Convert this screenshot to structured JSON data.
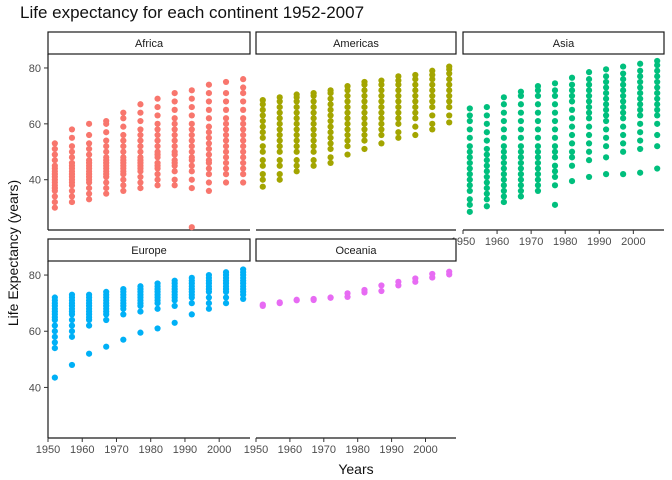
{
  "chart_data": {
    "type": "scatter",
    "title": "Life expectancy for each continent 1952-2007",
    "xlabel": "Years",
    "ylabel": "Life Expectancy (years)",
    "xlim": [
      1950,
      2009
    ],
    "ylim": [
      22,
      85
    ],
    "x_ticks": [
      1950,
      1960,
      1970,
      1980,
      1990,
      2000
    ],
    "y_ticks": [
      40,
      60,
      80
    ],
    "grid": false,
    "legend": "none",
    "facets": [
      {
        "name": "Africa",
        "color": "#F8766D",
        "points": [
          {
            "x": 1952,
            "y": [
              30,
              32,
              34,
              36,
              37,
              38,
              39,
              40,
              41,
              42,
              43,
              44,
              45,
              47,
              49,
              51,
              53
            ]
          },
          {
            "x": 1957,
            "y": [
              32,
              34,
              36,
              38,
              39,
              40,
              41,
              42,
              43,
              44,
              45,
              46,
              48,
              50,
              52,
              55,
              58
            ]
          },
          {
            "x": 1962,
            "y": [
              33,
              35,
              37,
              39,
              40,
              41,
              42,
              43,
              44,
              45,
              46,
              47,
              49,
              51,
              53,
              56,
              60
            ]
          },
          {
            "x": 1967,
            "y": [
              35,
              37,
              39,
              41,
              42,
              43,
              44,
              45,
              46,
              47,
              48,
              50,
              52,
              54,
              57,
              60,
              61
            ]
          },
          {
            "x": 1972,
            "y": [
              36,
              38,
              40,
              42,
              43,
              44,
              45,
              46,
              47,
              48,
              50,
              52,
              54,
              56,
              59,
              62,
              64
            ]
          },
          {
            "x": 1977,
            "y": [
              37,
              39,
              41,
              43,
              44,
              45,
              46,
              47,
              48,
              50,
              52,
              54,
              56,
              58,
              61,
              64,
              67
            ]
          },
          {
            "x": 1982,
            "y": [
              38,
              40,
              42,
              44,
              45,
              46,
              48,
              49,
              50,
              52,
              54,
              56,
              58,
              60,
              63,
              66,
              69
            ]
          },
          {
            "x": 1987,
            "y": [
              38,
              40,
              43,
              45,
              46,
              47,
              49,
              50,
              52,
              54,
              56,
              58,
              60,
              62,
              65,
              68,
              71
            ]
          },
          {
            "x": 1992,
            "y": [
              23,
              37,
              40,
              43,
              45,
              47,
              48,
              50,
              52,
              54,
              56,
              58,
              60,
              63,
              66,
              69,
              72
            ]
          },
          {
            "x": 1997,
            "y": [
              36,
              39,
              42,
              44,
              46,
              47,
              49,
              51,
              53,
              55,
              57,
              59,
              62,
              65,
              68,
              71,
              74
            ]
          },
          {
            "x": 2002,
            "y": [
              39,
              42,
              44,
              46,
              48,
              50,
              52,
              54,
              56,
              58,
              60,
              62,
              65,
              68,
              71,
              75
            ]
          },
          {
            "x": 2007,
            "y": [
              39,
              42,
              44,
              46,
              48,
              50,
              52,
              54,
              56,
              58,
              60,
              62,
              65,
              68,
              71,
              73,
              76
            ]
          }
        ]
      },
      {
        "name": "Americas",
        "color": "#A3A500",
        "points": [
          {
            "x": 1952,
            "y": [
              37.5,
              40,
              42,
              45,
              47,
              50,
              52,
              55,
              57,
              59,
              61,
              63,
              65,
              67,
              68.5
            ]
          },
          {
            "x": 1957,
            "y": [
              40,
              42,
              45,
              47,
              50,
              52,
              54,
              56,
              58,
              60,
              62,
              64,
              66,
              68,
              69.5
            ]
          },
          {
            "x": 1962,
            "y": [
              43,
              45,
              47,
              50,
              52,
              54,
              56,
              58,
              60,
              62,
              64,
              66,
              68,
              69.5,
              70.5
            ]
          },
          {
            "x": 1967,
            "y": [
              45,
              47,
              50,
              52,
              54,
              56,
              58,
              60,
              62,
              64,
              66,
              68,
              70,
              71
            ]
          },
          {
            "x": 1972,
            "y": [
              46,
              48,
              51,
              53,
              55,
              57,
              59,
              61,
              63,
              65,
              67,
              69,
              71,
              72
            ]
          },
          {
            "x": 1977,
            "y": [
              49,
              52,
              54,
              56,
              58,
              60,
              62,
              64,
              66,
              68,
              70,
              72,
              73.5
            ]
          },
          {
            "x": 1982,
            "y": [
              51,
              54,
              56,
              58,
              60,
              62,
              64,
              66,
              68,
              70,
              72,
              74,
              75
            ]
          },
          {
            "x": 1987,
            "y": [
              53,
              56,
              58,
              60,
              62,
              64,
              66,
              68,
              70,
              72,
              74,
              75.5
            ]
          },
          {
            "x": 1992,
            "y": [
              55,
              57,
              60,
              62,
              64,
              66,
              68,
              70,
              72,
              74,
              75.5,
              77
            ]
          },
          {
            "x": 1997,
            "y": [
              56,
              59,
              62,
              64,
              66,
              68,
              70,
              72,
              74,
              76,
              77.5
            ]
          },
          {
            "x": 2002,
            "y": [
              58,
              60,
              63,
              66,
              68,
              70,
              72,
              74,
              76,
              77.5,
              79
            ]
          },
          {
            "x": 2007,
            "y": [
              60.5,
              63,
              66,
              68,
              70,
              72,
              74,
              76,
              78,
              79.5,
              80.5
            ]
          }
        ]
      },
      {
        "name": "Asia",
        "color": "#00BF7D",
        "points": [
          {
            "x": 1952,
            "y": [
              28.5,
              31,
              33,
              36,
              38,
              40,
              42,
              44,
              46,
              48,
              50,
              52,
              55,
              58,
              61,
              63,
              65.5
            ]
          },
          {
            "x": 1957,
            "y": [
              30.5,
              33,
              35,
              37,
              39,
              41,
              43,
              45,
              47,
              49,
              51,
              54,
              57,
              60,
              63,
              66
            ]
          },
          {
            "x": 1962,
            "y": [
              32,
              34,
              36,
              38,
              40,
              42,
              44,
              46,
              48,
              50,
              52,
              55,
              58,
              61,
              64,
              67,
              69.5
            ]
          },
          {
            "x": 1967,
            "y": [
              34,
              36,
              38,
              40,
              42,
              44,
              46,
              48,
              50,
              52,
              55,
              58,
              61,
              64,
              67,
              70,
              71.5
            ]
          },
          {
            "x": 1972,
            "y": [
              36,
              38,
              40,
              42,
              44,
              46,
              48,
              50,
              52,
              55,
              58,
              61,
              64,
              67,
              70,
              72,
              73.5
            ]
          },
          {
            "x": 1977,
            "y": [
              31,
              38,
              41,
              43,
              45,
              48,
              50,
              52,
              55,
              58,
              61,
              64,
              67,
              70,
              72,
              74.5
            ]
          },
          {
            "x": 1982,
            "y": [
              39.5,
              45,
              48,
              50,
              53,
              56,
              59,
              62,
              65,
              68,
              70,
              72,
              74,
              76.5
            ]
          },
          {
            "x": 1987,
            "y": [
              41,
              47,
              50,
              53,
              56,
              59,
              62,
              64,
              66,
              68,
              70,
              72,
              74,
              76,
              78.5
            ]
          },
          {
            "x": 1992,
            "y": [
              42,
              48,
              52,
              55,
              58,
              61,
              63,
              65,
              67,
              69,
              71,
              73,
              75,
              77,
              79.5
            ]
          },
          {
            "x": 1997,
            "y": [
              42,
              50,
              53,
              56,
              59,
              62,
              64,
              66,
              68,
              70,
              72,
              74,
              76,
              78,
              80.5
            ]
          },
          {
            "x": 2002,
            "y": [
              42.5,
              51,
              54,
              57,
              60,
              63,
              65,
              67,
              69,
              71,
              73,
              75,
              77,
              79,
              81.5
            ]
          },
          {
            "x": 2007,
            "y": [
              44,
              52,
              56,
              60,
              63,
              65,
              67,
              69,
              71,
              73,
              75,
              77,
              79,
              81,
              82.5
            ]
          }
        ]
      },
      {
        "name": "Europe",
        "color": "#00B0F6",
        "points": [
          {
            "x": 1952,
            "y": [
              43.5,
              54,
              56,
              58,
              60,
              62,
              64,
              65,
              66,
              67,
              68,
              69,
              70,
              71,
              72
            ]
          },
          {
            "x": 1957,
            "y": [
              48,
              58,
              60,
              62,
              64,
              66,
              67,
              68,
              69,
              70,
              71,
              72,
              73
            ]
          },
          {
            "x": 1962,
            "y": [
              52,
              62,
              64,
              65,
              66,
              67,
              68,
              69,
              70,
              71,
              72,
              73
            ]
          },
          {
            "x": 1967,
            "y": [
              54.5,
              64,
              66,
              67,
              68,
              69,
              70,
              71,
              72,
              73,
              74
            ]
          },
          {
            "x": 1972,
            "y": [
              57,
              66,
              68,
              69,
              70,
              71,
              72,
              73,
              74,
              75
            ]
          },
          {
            "x": 1977,
            "y": [
              59.5,
              67,
              69,
              70,
              71,
              72,
              73,
              74,
              75,
              76
            ]
          },
          {
            "x": 1982,
            "y": [
              61,
              68,
              70,
              71,
              72,
              73,
              74,
              75,
              76,
              77
            ]
          },
          {
            "x": 1987,
            "y": [
              63,
              69,
              71,
              72,
              73,
              74,
              75,
              76,
              77,
              78
            ]
          },
          {
            "x": 1992,
            "y": [
              66,
              70,
              72,
              73,
              74,
              75,
              76,
              77,
              78,
              79
            ]
          },
          {
            "x": 1997,
            "y": [
              68,
              70,
              72,
              74,
              75,
              76,
              77,
              78,
              79,
              80
            ]
          },
          {
            "x": 2002,
            "y": [
              70,
              72,
              74,
              75,
              76,
              77,
              78,
              79,
              80,
              81
            ]
          },
          {
            "x": 2007,
            "y": [
              71.5,
              73,
              74,
              75,
              76,
              77,
              78,
              79,
              80,
              81,
              82
            ]
          }
        ]
      },
      {
        "name": "Oceania",
        "color": "#E76BF3",
        "points": [
          {
            "x": 1952,
            "y": [
              69,
              69.5
            ]
          },
          {
            "x": 1957,
            "y": [
              70,
              70.3
            ]
          },
          {
            "x": 1962,
            "y": [
              71,
              71.2
            ]
          },
          {
            "x": 1967,
            "y": [
              71.1,
              71.5
            ]
          },
          {
            "x": 1972,
            "y": [
              71.9,
              72
            ]
          },
          {
            "x": 1977,
            "y": [
              72.2,
              73.5
            ]
          },
          {
            "x": 1982,
            "y": [
              73.8,
              74.7
            ]
          },
          {
            "x": 1987,
            "y": [
              74.3,
              76.3
            ]
          },
          {
            "x": 1992,
            "y": [
              76.3,
              77.6
            ]
          },
          {
            "x": 1997,
            "y": [
              77.6,
              78.8
            ]
          },
          {
            "x": 2002,
            "y": [
              79.1,
              80.4
            ]
          },
          {
            "x": 2007,
            "y": [
              80.2,
              81.2
            ]
          }
        ]
      }
    ]
  }
}
